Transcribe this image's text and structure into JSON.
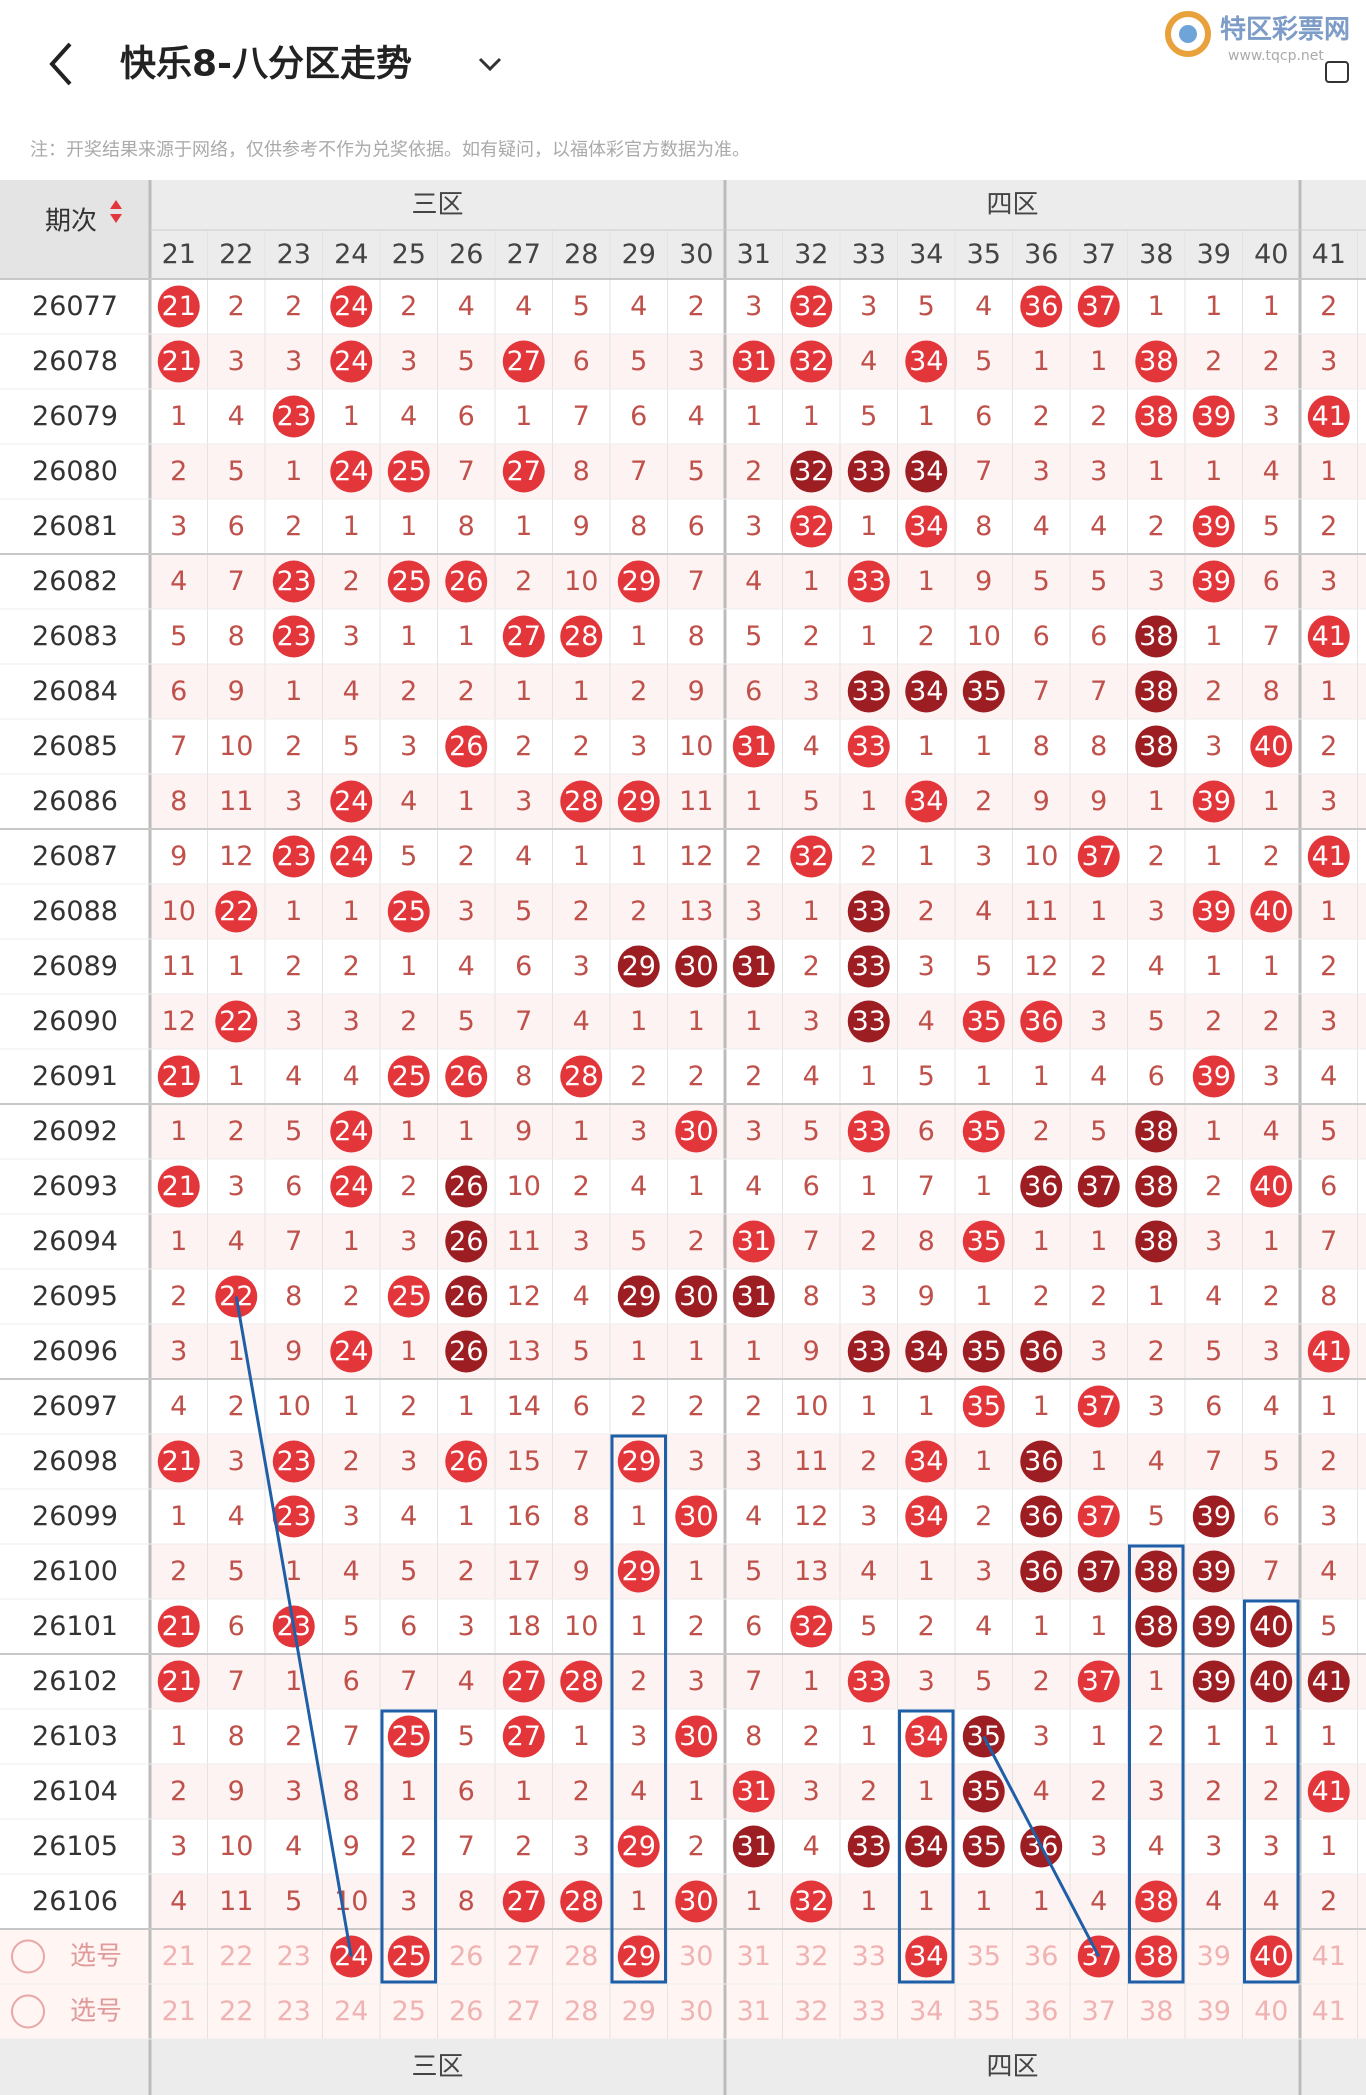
{
  "header": {
    "title": "快乐8-八分区走势",
    "logo": "特区彩票网",
    "logo_url": "www.tqcp.net"
  },
  "note": "注：开奖结果来源于网络，仅供参考不作为兑奖依据。如有疑问，以福体彩官方数据为准。",
  "table": {
    "period_header": "期次",
    "zones": [
      "三区",
      "四区"
    ],
    "columns": [
      21,
      22,
      23,
      24,
      25,
      26,
      27,
      28,
      29,
      30,
      31,
      32,
      33,
      34,
      35,
      36,
      37,
      38,
      39,
      40,
      41
    ],
    "rows": [
      {
        "period": 26077,
        "cells": [
          21,
          2,
          2,
          24,
          2,
          4,
          4,
          5,
          4,
          2,
          3,
          32,
          3,
          5,
          4,
          36,
          37,
          1,
          1,
          1,
          2
        ],
        "marks": "r..r.......r...rr...."
      },
      {
        "period": 26078,
        "cells": [
          21,
          3,
          3,
          24,
          3,
          5,
          27,
          6,
          5,
          3,
          31,
          32,
          4,
          34,
          5,
          1,
          1,
          38,
          2,
          2,
          3
        ],
        "marks": "r..r..r...rr.r...r..."
      },
      {
        "period": 26079,
        "cells": [
          1,
          4,
          23,
          1,
          4,
          6,
          1,
          7,
          6,
          4,
          1,
          1,
          5,
          1,
          6,
          2,
          2,
          38,
          39,
          3,
          41
        ],
        "marks": "..r..............rr.r"
      },
      {
        "period": 26080,
        "cells": [
          2,
          5,
          1,
          24,
          25,
          7,
          27,
          8,
          7,
          5,
          2,
          32,
          33,
          34,
          7,
          3,
          3,
          1,
          1,
          4,
          1
        ],
        "marks": "...rr.r....ddd......."
      },
      {
        "period": 26081,
        "cells": [
          3,
          6,
          2,
          1,
          1,
          8,
          1,
          9,
          8,
          6,
          3,
          32,
          1,
          34,
          8,
          4,
          4,
          2,
          39,
          5,
          2
        ],
        "marks": "...........r.r....r.."
      },
      {
        "period": 26082,
        "cells": [
          4,
          7,
          23,
          2,
          25,
          26,
          2,
          10,
          29,
          7,
          4,
          1,
          33,
          1,
          9,
          5,
          5,
          3,
          39,
          6,
          3
        ],
        "marks": "..r.rr..r...r.....r.."
      },
      {
        "period": 26083,
        "cells": [
          5,
          8,
          23,
          3,
          1,
          1,
          27,
          28,
          1,
          8,
          5,
          2,
          1,
          2,
          10,
          6,
          6,
          38,
          1,
          7,
          41
        ],
        "marks": "..r...rr.........d..r"
      },
      {
        "period": 26084,
        "cells": [
          6,
          9,
          1,
          4,
          2,
          2,
          1,
          1,
          2,
          9,
          6,
          3,
          33,
          34,
          35,
          7,
          7,
          38,
          2,
          8,
          1
        ],
        "marks": "............ddd..d..."
      },
      {
        "period": 26085,
        "cells": [
          7,
          10,
          2,
          5,
          3,
          26,
          2,
          2,
          3,
          10,
          31,
          4,
          33,
          1,
          1,
          8,
          8,
          38,
          3,
          40,
          2
        ],
        "marks": ".....r....r.r....d.r."
      },
      {
        "period": 26086,
        "cells": [
          8,
          11,
          3,
          24,
          4,
          1,
          3,
          28,
          29,
          11,
          1,
          5,
          1,
          34,
          2,
          9,
          9,
          1,
          39,
          1,
          3
        ],
        "marks": "...r...rr....r....r.."
      },
      {
        "period": 26087,
        "cells": [
          9,
          12,
          23,
          24,
          5,
          2,
          4,
          1,
          1,
          12,
          2,
          32,
          2,
          1,
          3,
          10,
          37,
          2,
          1,
          2,
          41
        ],
        "marks": "..rr.......r....r...r"
      },
      {
        "period": 26088,
        "cells": [
          10,
          22,
          1,
          1,
          25,
          3,
          5,
          2,
          2,
          13,
          3,
          1,
          33,
          2,
          4,
          11,
          1,
          3,
          39,
          40,
          1
        ],
        "marks": ".r..r.......d.....rr."
      },
      {
        "period": 26089,
        "cells": [
          11,
          1,
          2,
          2,
          1,
          4,
          6,
          3,
          29,
          30,
          31,
          2,
          33,
          3,
          5,
          12,
          2,
          4,
          1,
          1,
          2
        ],
        "marks": "........ddd.d........"
      },
      {
        "period": 26090,
        "cells": [
          12,
          22,
          3,
          3,
          2,
          5,
          7,
          4,
          1,
          1,
          1,
          3,
          33,
          4,
          35,
          36,
          3,
          5,
          2,
          2,
          3
        ],
        "marks": ".r..........d.rr....."
      },
      {
        "period": 26091,
        "cells": [
          21,
          1,
          4,
          4,
          25,
          26,
          8,
          28,
          2,
          2,
          2,
          4,
          1,
          5,
          1,
          1,
          4,
          6,
          39,
          3,
          4
        ],
        "marks": "r...rr.r..........r.."
      },
      {
        "period": 26092,
        "cells": [
          1,
          2,
          5,
          24,
          1,
          1,
          9,
          1,
          3,
          30,
          3,
          5,
          33,
          6,
          35,
          2,
          5,
          38,
          1,
          4,
          5
        ],
        "marks": "...r.....r..r.r..d..."
      },
      {
        "period": 26093,
        "cells": [
          21,
          3,
          6,
          24,
          2,
          26,
          10,
          2,
          4,
          1,
          4,
          6,
          1,
          7,
          1,
          36,
          37,
          38,
          2,
          40,
          6
        ],
        "marks": "r..r.d.........ddd.r."
      },
      {
        "period": 26094,
        "cells": [
          1,
          4,
          7,
          1,
          3,
          26,
          11,
          3,
          5,
          2,
          31,
          7,
          2,
          8,
          35,
          1,
          1,
          38,
          3,
          1,
          7
        ],
        "marks": ".....d....r...r..d..."
      },
      {
        "period": 26095,
        "cells": [
          2,
          22,
          8,
          2,
          25,
          26,
          12,
          4,
          29,
          30,
          31,
          8,
          3,
          9,
          1,
          2,
          2,
          1,
          4,
          2,
          8
        ],
        "marks": ".r..rd..ddd.........."
      },
      {
        "period": 26096,
        "cells": [
          3,
          1,
          9,
          24,
          1,
          26,
          13,
          5,
          1,
          1,
          1,
          9,
          33,
          34,
          35,
          36,
          3,
          2,
          5,
          3,
          41
        ],
        "marks": "...r.d......dddd....r"
      },
      {
        "period": 26097,
        "cells": [
          4,
          2,
          10,
          1,
          2,
          1,
          14,
          6,
          2,
          2,
          2,
          10,
          1,
          1,
          35,
          1,
          37,
          3,
          6,
          4,
          1
        ],
        "marks": "..............r.r...."
      },
      {
        "period": 26098,
        "cells": [
          21,
          3,
          23,
          2,
          3,
          26,
          15,
          7,
          29,
          3,
          3,
          11,
          2,
          34,
          1,
          36,
          1,
          4,
          7,
          5,
          2
        ],
        "marks": "r.r..r..r....r.d....."
      },
      {
        "period": 26099,
        "cells": [
          1,
          4,
          23,
          3,
          4,
          1,
          16,
          8,
          1,
          30,
          4,
          12,
          3,
          34,
          2,
          36,
          37,
          5,
          39,
          6,
          3
        ],
        "marks": "..r......r...r.dr.d.."
      },
      {
        "period": 26100,
        "cells": [
          2,
          5,
          1,
          4,
          5,
          2,
          17,
          9,
          29,
          1,
          5,
          13,
          4,
          1,
          3,
          36,
          37,
          38,
          39,
          7,
          4
        ],
        "marks": "........r......dddd.."
      },
      {
        "period": 26101,
        "cells": [
          21,
          6,
          23,
          5,
          6,
          3,
          18,
          10,
          1,
          2,
          6,
          32,
          5,
          2,
          4,
          1,
          1,
          38,
          39,
          40,
          5
        ],
        "marks": "r.r........r.....ddd."
      },
      {
        "period": 26102,
        "cells": [
          21,
          7,
          1,
          6,
          7,
          4,
          27,
          28,
          2,
          3,
          7,
          1,
          33,
          3,
          5,
          2,
          37,
          1,
          39,
          40,
          41
        ],
        "marks": "r.....rr....r...r.ddd"
      },
      {
        "period": 26103,
        "cells": [
          1,
          8,
          2,
          7,
          25,
          5,
          27,
          1,
          3,
          30,
          8,
          2,
          1,
          34,
          35,
          3,
          1,
          2,
          1,
          1,
          1
        ],
        "marks": "....r.r..r...rd......"
      },
      {
        "period": 26104,
        "cells": [
          2,
          9,
          3,
          8,
          1,
          6,
          1,
          2,
          4,
          1,
          31,
          3,
          2,
          1,
          35,
          4,
          2,
          3,
          2,
          2,
          41
        ],
        "marks": "..........r...d.....r"
      },
      {
        "period": 26105,
        "cells": [
          3,
          10,
          4,
          9,
          2,
          7,
          2,
          3,
          29,
          2,
          31,
          4,
          33,
          34,
          35,
          36,
          3,
          4,
          3,
          3,
          1
        ],
        "marks": "........r.d.dddd....."
      },
      {
        "period": 26106,
        "cells": [
          4,
          11,
          5,
          10,
          3,
          8,
          27,
          28,
          1,
          30,
          1,
          32,
          1,
          1,
          1,
          1,
          4,
          38,
          4,
          4,
          2
        ],
        "marks": "......rr.r.r.....r..."
      }
    ],
    "pick_rows": [
      {
        "label": "选号",
        "marks": "...rr...r....r..rr.r."
      },
      {
        "label": "选号",
        "marks": "....................."
      }
    ],
    "footer_zones": [
      "三区",
      "四区"
    ]
  }
}
